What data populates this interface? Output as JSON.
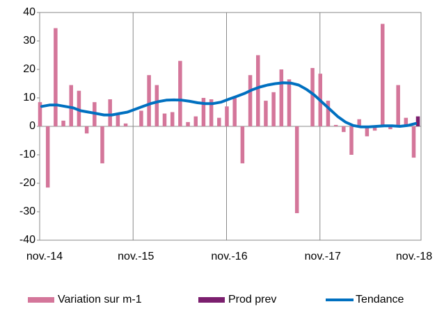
{
  "chart_data": {
    "type": "bar-line",
    "categories": [
      "nov.-14",
      null,
      null,
      null,
      null,
      null,
      null,
      null,
      null,
      null,
      null,
      null,
      "nov.-15",
      null,
      null,
      null,
      null,
      null,
      null,
      null,
      null,
      null,
      null,
      null,
      "nov.-16",
      null,
      null,
      null,
      null,
      null,
      null,
      null,
      null,
      null,
      null,
      null,
      "nov.-17",
      null,
      null,
      null,
      null,
      null,
      null,
      null,
      null,
      null,
      null,
      null,
      "nov.-18"
    ],
    "series": [
      {
        "name": "Variation sur m-1",
        "type": "bar",
        "color": "#d4769a",
        "values": [
          8.5,
          -21.5,
          34.5,
          2,
          14.5,
          12.5,
          -2.5,
          8.5,
          -13,
          9.5,
          4.5,
          1,
          0,
          5.5,
          18,
          14.5,
          4.5,
          5,
          23,
          1.5,
          3.5,
          10,
          9.5,
          3,
          7,
          10.5,
          -13,
          18,
          25,
          9,
          12,
          20,
          16.5,
          -30.5,
          0,
          20.5,
          18.5,
          9,
          0.5,
          -2,
          -10,
          2.5,
          -3.5,
          -1.5,
          36,
          -1,
          14.5,
          3,
          -11
        ]
      },
      {
        "name": "Prod prev",
        "type": "bar",
        "color": "#7b1f6e",
        "values": [
          null,
          null,
          null,
          null,
          null,
          null,
          null,
          null,
          null,
          null,
          null,
          null,
          null,
          null,
          null,
          null,
          null,
          null,
          null,
          null,
          null,
          null,
          null,
          null,
          null,
          null,
          null,
          null,
          null,
          null,
          null,
          null,
          null,
          null,
          null,
          null,
          null,
          null,
          null,
          null,
          null,
          null,
          null,
          null,
          null,
          null,
          null,
          null,
          3.5
        ]
      },
      {
        "name": "Tendance",
        "type": "line",
        "color": "#0070c0",
        "values": [
          7,
          7.5,
          7.5,
          7,
          6.5,
          5.5,
          5,
          4.5,
          4,
          4,
          4.5,
          5,
          6,
          7,
          8,
          8.7,
          9.2,
          9.3,
          9.2,
          8.8,
          8.3,
          8,
          8,
          8.5,
          9.5,
          10.5,
          11.5,
          12.8,
          13.8,
          14.5,
          15,
          15.3,
          15.2,
          14.5,
          13,
          11,
          8.5,
          6,
          3.5,
          1.5,
          0.3,
          -0.2,
          -0.2,
          0,
          0.2,
          0.2,
          0,
          0.3,
          1
        ]
      }
    ],
    "ylim": [
      -40,
      40
    ],
    "yticks": [
      -40,
      -30,
      -20,
      -10,
      0,
      10,
      20,
      30,
      40
    ],
    "grid": "x",
    "legend": "bottom"
  }
}
